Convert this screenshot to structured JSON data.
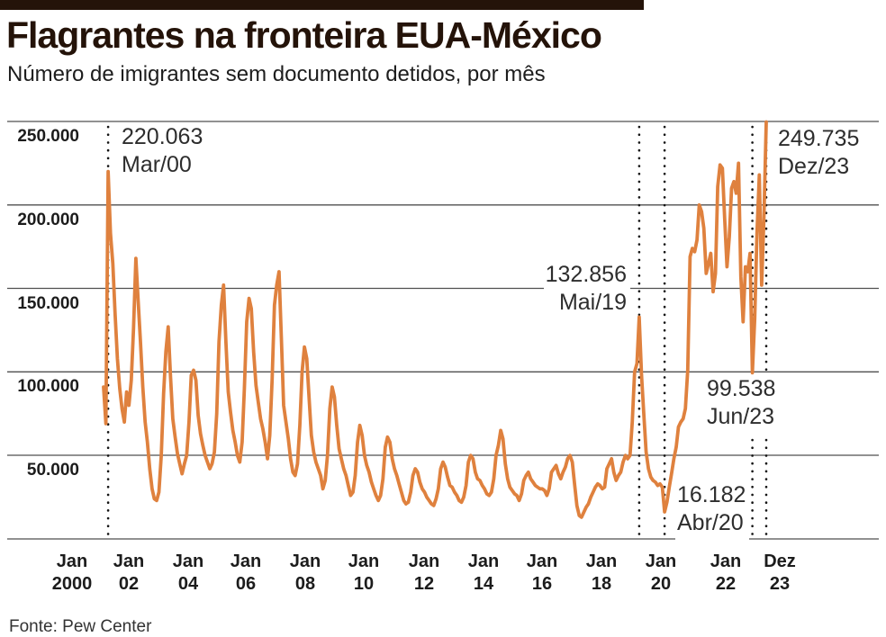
{
  "header": {
    "title": "Flagrantes na fronteira EUA-México",
    "subtitle": "Número de imigrantes sem documento detidos, por mês"
  },
  "footer": {
    "source": "Fonte: Pew Center"
  },
  "colors": {
    "line": "#df813e",
    "gridline": "#4f4f4f",
    "marker_dots": "#141414",
    "topbar": "#241309",
    "text": "#1c1c1c"
  },
  "y_axis": {
    "labels": [
      "250.000",
      "200.000",
      "150.000",
      "100.000",
      "50.000"
    ]
  },
  "x_axis": {
    "ticks": [
      [
        "Jan",
        "2000"
      ],
      [
        "Jan",
        "02"
      ],
      [
        "Jan",
        "04"
      ],
      [
        "Jan",
        "06"
      ],
      [
        "Jan",
        "08"
      ],
      [
        "Jan",
        "10"
      ],
      [
        "Jan",
        "12"
      ],
      [
        "Jan",
        "14"
      ],
      [
        "Jan",
        "16"
      ],
      [
        "Jan",
        "18"
      ],
      [
        "Jan",
        "20"
      ],
      [
        "Jan",
        "22"
      ],
      [
        "Dez",
        "23"
      ]
    ]
  },
  "annotations": [
    {
      "value": "220.063",
      "date": "Mar/00",
      "month_index": 2
    },
    {
      "value": "132.856",
      "date": "Mai/19",
      "month_index": 232
    },
    {
      "value": "16.182",
      "date": "Abr/20",
      "month_index": 243
    },
    {
      "value": "99.538",
      "date": "Jun/23",
      "month_index": 281
    },
    {
      "value": "249.735",
      "date": "Dez/23",
      "month_index": 287
    }
  ],
  "chart_data": {
    "type": "line",
    "title": "Flagrantes na fronteira EUA-México",
    "subtitle": "Número de imigrantes sem documento detidos, por mês",
    "frequency": "monthly",
    "start": "Jan/2000",
    "end": "Dez/2023",
    "values_unit": "thousands of persons",
    "ylim_thousands": [
      0,
      250
    ],
    "y_tick_labels": [
      "50.000",
      "100.000",
      "150.000",
      "200.000",
      "250.000"
    ],
    "grid": "horizontal only",
    "legend": "none",
    "key_points": [
      {
        "label": "Mar/00",
        "value_thousands": 220.063
      },
      {
        "label": "Mai/19",
        "value_thousands": 132.856
      },
      {
        "label": "Abr/20",
        "value_thousands": 16.182
      },
      {
        "label": "Jun/23",
        "value_thousands": 99.538
      },
      {
        "label": "Dez/23",
        "value_thousands": 249.735
      }
    ],
    "values": [
      91,
      69,
      220.063,
      183,
      165,
      135,
      108,
      90,
      78,
      70,
      88,
      80,
      95,
      126,
      168,
      142,
      118,
      91,
      70,
      58,
      42,
      30,
      24,
      23,
      28,
      50,
      87,
      112,
      127,
      97,
      72,
      61,
      51,
      45,
      39,
      45,
      50,
      70,
      98,
      101,
      95,
      74,
      63,
      56,
      50,
      46,
      42,
      45,
      52,
      75,
      118,
      140,
      152,
      118,
      88,
      76,
      65,
      58,
      50,
      46,
      58,
      90,
      130,
      144,
      138,
      112,
      92,
      82,
      72,
      66,
      58,
      48,
      62,
      95,
      140,
      152,
      160,
      120,
      80,
      70,
      60,
      48,
      40,
      38,
      45,
      68,
      100,
      115,
      108,
      85,
      62,
      52,
      46,
      42,
      38,
      30,
      35,
      50,
      78,
      91,
      85,
      68,
      54,
      48,
      42,
      38,
      32,
      26,
      28,
      38,
      58,
      68,
      62,
      50,
      44,
      40,
      34,
      30,
      26,
      23,
      26,
      36,
      55,
      61,
      58,
      48,
      42,
      38,
      33,
      28,
      23,
      21,
      22,
      28,
      38,
      42,
      40,
      34,
      30,
      28,
      25,
      23,
      21,
      20,
      24,
      30,
      42,
      46,
      43,
      37,
      32,
      31,
      28,
      26,
      23,
      22,
      25,
      32,
      46,
      50,
      48,
      40,
      36,
      35,
      32,
      30,
      27,
      26,
      28,
      36,
      50,
      56,
      65,
      60,
      45,
      36,
      31,
      29,
      27,
      26,
      23,
      27,
      35,
      38,
      40,
      36,
      34,
      32,
      31,
      30,
      30,
      29,
      26,
      30,
      40,
      42,
      44,
      39,
      36,
      40,
      43,
      48,
      50,
      46,
      33,
      20,
      14,
      13,
      16,
      19,
      21,
      25,
      28,
      31,
      33,
      32,
      30,
      31,
      42,
      45,
      48,
      40,
      35,
      38,
      40,
      46,
      50,
      48,
      50,
      70,
      100,
      105,
      132.856,
      98,
      74,
      52,
      42,
      37,
      35,
      34,
      32,
      33,
      31,
      16.182,
      22,
      31,
      39,
      48,
      55,
      67,
      70,
      72,
      78,
      101,
      169,
      174,
      172,
      179,
      200,
      196,
      186,
      159,
      165,
      171,
      148,
      159,
      211,
      224,
      222,
      192,
      163,
      181,
      210,
      214,
      207,
      225,
      157,
      130,
      163,
      160,
      171,
      99.538,
      132,
      183,
      218,
      152,
      192,
      249.735
    ]
  }
}
